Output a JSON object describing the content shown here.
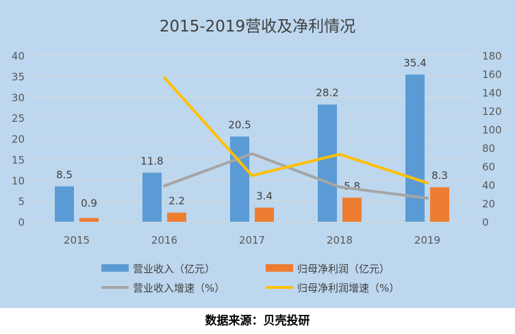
{
  "chart_data": {
    "type": "bar",
    "title": "2015-2019营收及净利情况",
    "categories": [
      "2015",
      "2016",
      "2017",
      "2018",
      "2019"
    ],
    "series": [
      {
        "name": "营业收入（亿元）",
        "kind": "bar",
        "axis": "left",
        "color": "#5B9BD5",
        "values": [
          8.5,
          11.8,
          20.5,
          28.2,
          35.4
        ],
        "labels": [
          "8.5",
          "11.8",
          "20.5",
          "28.2",
          "35.4"
        ]
      },
      {
        "name": "归母净利润（亿元）",
        "kind": "bar",
        "axis": "left",
        "color": "#ED7D31",
        "values": [
          0.9,
          2.2,
          3.4,
          5.8,
          8.3
        ],
        "labels": [
          "0.9",
          "2.2",
          "3.4",
          "5.8",
          "8.3"
        ]
      },
      {
        "name": "营业收入增速（%）",
        "kind": "line",
        "axis": "right",
        "color": "#A5A5A5",
        "values": [
          null,
          38.8,
          73.7,
          37.6,
          25.5
        ]
      },
      {
        "name": "归母净利润增速（%）",
        "kind": "line",
        "axis": "right",
        "color": "#FFC000",
        "values": [
          null,
          156,
          50,
          73,
          42
        ]
      }
    ],
    "y_left": {
      "min": 0,
      "max": 40,
      "ticks": [
        "0",
        "5",
        "10",
        "15",
        "20",
        "25",
        "30",
        "35",
        "40"
      ]
    },
    "y_right": {
      "min": 0,
      "max": 180,
      "ticks": [
        "0",
        "20",
        "40",
        "60",
        "80",
        "100",
        "120",
        "140",
        "160",
        "180"
      ]
    },
    "legend_position": "bottom",
    "background_color": "#BDD7EE",
    "grid": true
  },
  "source": "数据来源：贝壳投研"
}
